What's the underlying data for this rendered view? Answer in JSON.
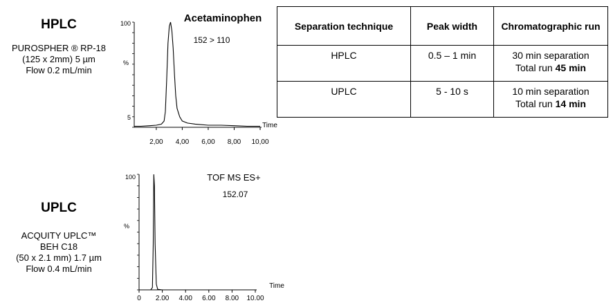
{
  "hplc": {
    "title": "HPLC",
    "column_lines": [
      "PUROSPHER ® RP-18",
      "(125 x 2mm) 5 µm",
      "Flow 0.2 mL/min"
    ]
  },
  "uplc": {
    "title": "UPLC",
    "column_lines": [
      "ACQUITY UPLC™",
      "BEH C18",
      "(50 x 2.1 mm) 1.7 µm",
      "Flow 0.4 mL/min"
    ]
  },
  "chart_data": [
    {
      "type": "line",
      "title": "Acetaminophen",
      "annotation": "152 > 110",
      "xlabel": "Time",
      "ylabel": "%",
      "x_ticks": [
        "2,00",
        "4,00",
        "6,00",
        "8,00",
        "10,00"
      ],
      "x_tick_values": [
        2,
        4,
        6,
        8,
        10
      ],
      "y_ticks": [
        "100",
        "5"
      ],
      "y_tick_values": [
        100,
        5
      ],
      "xlim": [
        0.3,
        10
      ],
      "ylim": [
        0,
        100
      ],
      "series": [
        {
          "x": [
            0.3,
            0.8,
            1.5,
            2.0,
            2.4,
            2.6,
            2.7,
            2.8,
            2.9,
            3.0,
            3.1,
            3.2,
            3.3,
            3.4,
            3.5,
            3.6,
            3.8,
            4.0,
            4.4,
            5.0,
            6.0,
            7.0,
            8.0,
            9.0,
            10.0
          ],
          "y": [
            1,
            1,
            1.5,
            2,
            3,
            6,
            15,
            45,
            80,
            96,
            100,
            92,
            75,
            50,
            30,
            18,
            10,
            6,
            4,
            3,
            2,
            2,
            1.5,
            1,
            1
          ]
        }
      ]
    },
    {
      "type": "line",
      "title": "TOF MS ES+",
      "annotation": "152.07",
      "xlabel": "Time",
      "ylabel": "%",
      "x_ticks": [
        "0",
        "2.00",
        "4.00",
        "6.00",
        "8.00",
        "10.00"
      ],
      "x_tick_values": [
        0,
        2,
        4,
        6,
        8,
        10
      ],
      "y_ticks": [
        "100"
      ],
      "y_tick_values": [
        100
      ],
      "xlim": [
        0,
        10
      ],
      "ylim": [
        0,
        100
      ],
      "series": [
        {
          "x": [
            0,
            1.0,
            1.15,
            1.22,
            1.27,
            1.32,
            1.38,
            1.48,
            1.6,
            2.0,
            4.0,
            6.0,
            8.0,
            10.0
          ],
          "y": [
            0,
            0,
            2,
            40,
            100,
            90,
            40,
            5,
            0.5,
            0,
            0,
            0,
            0,
            0
          ]
        }
      ]
    }
  ],
  "table": {
    "headers": [
      "Separation technique",
      "Peak width",
      "Chromatographic run"
    ],
    "rows": [
      {
        "technique": "HPLC",
        "peak_width": "0.5 – 1 min",
        "run_sep": "30 min separation",
        "run_total_prefix": "Total run ",
        "run_total_value": "45 min"
      },
      {
        "technique": "UPLC",
        "peak_width": "5 - 10 s",
        "run_sep": "10 min separation",
        "run_total_prefix": "Total run ",
        "run_total_value": "14 min"
      }
    ]
  }
}
